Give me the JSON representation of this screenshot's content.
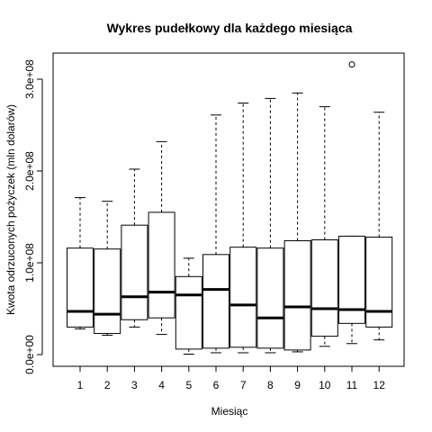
{
  "chart_data": {
    "type": "boxplot",
    "title": "Wykres pudełkowy dla każdego miesiąca",
    "xlabel": "Miesiąc",
    "ylabel": "Kwota odrzuconych pożyczek (mln dolarów)",
    "categories": [
      "1",
      "2",
      "3",
      "4",
      "5",
      "6",
      "7",
      "8",
      "9",
      "10",
      "11",
      "12"
    ],
    "ylim": [
      0,
      330000000
    ],
    "y_ticks": [
      0,
      100000000,
      200000000,
      300000000
    ],
    "y_tick_labels": [
      "0.0e+00",
      "1.0e+08",
      "2.0e+08",
      "3.0e+08"
    ],
    "grid": false,
    "legend": "none",
    "series": [
      {
        "boxes": [
          {
            "category": "1",
            "whisker_low": 28000000,
            "q1": 30000000,
            "median": 47000000,
            "q3": 116000000,
            "whisker_high": 171000000,
            "outliers": []
          },
          {
            "category": "2",
            "whisker_low": 21000000,
            "q1": 23000000,
            "median": 44000000,
            "q3": 115000000,
            "whisker_high": 167000000,
            "outliers": []
          },
          {
            "category": "3",
            "whisker_low": 30000000,
            "q1": 38000000,
            "median": 63000000,
            "q3": 141000000,
            "whisker_high": 202000000,
            "outliers": []
          },
          {
            "category": "4",
            "whisker_low": 22000000,
            "q1": 40000000,
            "median": 68000000,
            "q3": 155000000,
            "whisker_high": 232000000,
            "outliers": []
          },
          {
            "category": "5",
            "whisker_low": 500000,
            "q1": 6000000,
            "median": 65000000,
            "q3": 85000000,
            "whisker_high": 105000000,
            "outliers": []
          },
          {
            "category": "6",
            "whisker_low": 2000000,
            "q1": 7000000,
            "median": 71000000,
            "q3": 109000000,
            "whisker_high": 261000000,
            "outliers": []
          },
          {
            "category": "7",
            "whisker_low": 2000000,
            "q1": 8000000,
            "median": 54000000,
            "q3": 117000000,
            "whisker_high": 274000000,
            "outliers": []
          },
          {
            "category": "8",
            "whisker_low": 2000000,
            "q1": 7000000,
            "median": 40000000,
            "q3": 116000000,
            "whisker_high": 279000000,
            "outliers": []
          },
          {
            "category": "9",
            "whisker_low": 3000000,
            "q1": 5000000,
            "median": 52000000,
            "q3": 124000000,
            "whisker_high": 285000000,
            "outliers": []
          },
          {
            "category": "10",
            "whisker_low": 9000000,
            "q1": 20000000,
            "median": 50000000,
            "q3": 125000000,
            "whisker_high": 270000000,
            "outliers": []
          },
          {
            "category": "11",
            "whisker_low": 12000000,
            "q1": 34000000,
            "median": 49000000,
            "q3": 129000000,
            "whisker_high": 129000000,
            "outliers": [
              316000000
            ]
          },
          {
            "category": "12",
            "whisker_low": 16000000,
            "q1": 30000000,
            "median": 47000000,
            "q3": 128000000,
            "whisker_high": 264000000,
            "outliers": []
          }
        ]
      }
    ]
  },
  "colors": {
    "background": "#ffffff",
    "stroke": "#000000"
  }
}
